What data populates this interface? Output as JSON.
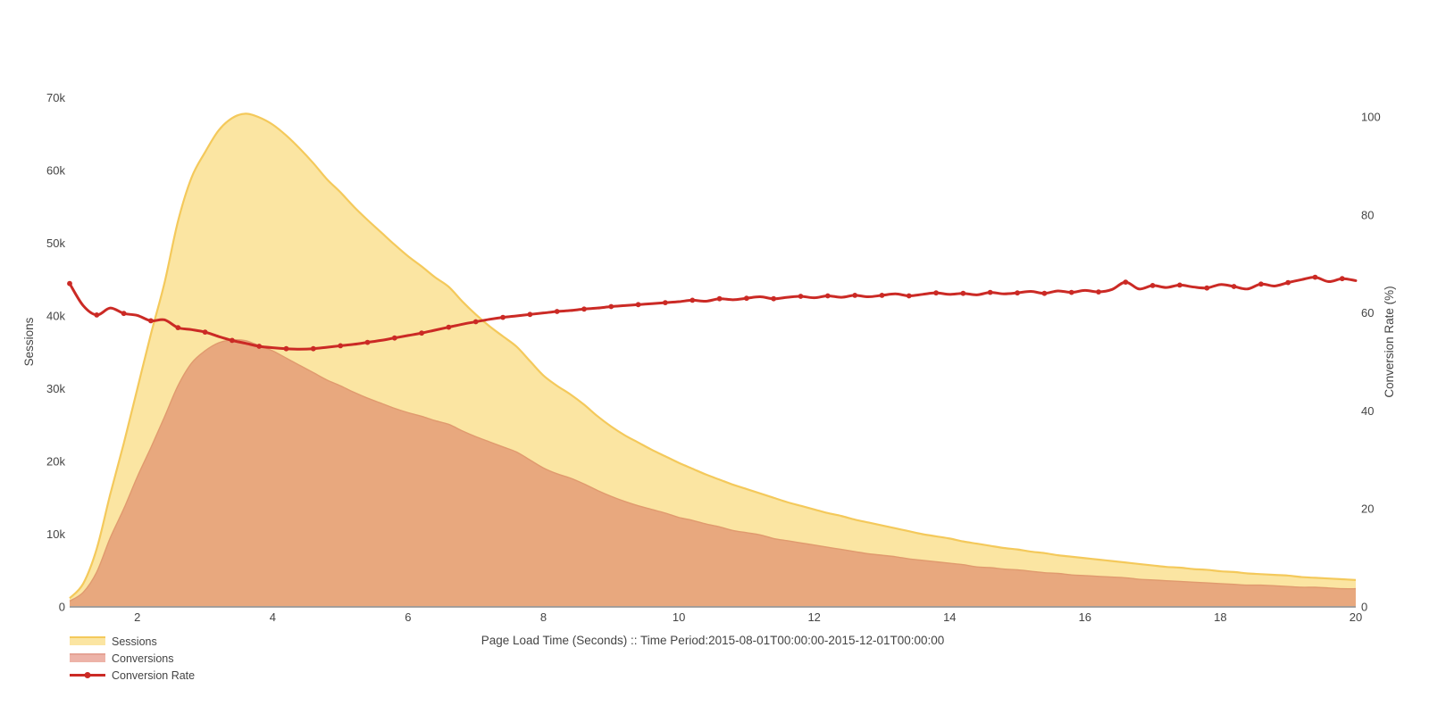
{
  "chart": {
    "xaxis_title": "Page Load Time (Seconds) :: Time Period:2015-08-01T00:00:00-2015-12-01T00:00:00",
    "yaxis_left_title": "Sessions",
    "yaxis_right_title": "Conversion Rate (%)",
    "legend": [
      {
        "label": "Sessions",
        "type": "area",
        "fill": "#FBE5A2",
        "stroke": "#F4C95B"
      },
      {
        "label": "Conversions",
        "type": "area",
        "fill": "#EDB3A8",
        "stroke": "#E5A294"
      },
      {
        "label": "Conversion Rate",
        "type": "line",
        "stroke": "#CB2A25"
      }
    ]
  },
  "colors": {
    "background": "#ffffff",
    "sessions_fill": "#FBE5A2",
    "sessions_stroke": "#F4C95B",
    "conversions_fill": "#E8A87E",
    "conversions_stroke": "#E09A6E",
    "rate_stroke": "#CB2A25",
    "axis_line": "#999999",
    "tick_text": "#444444",
    "title_text": "#444444"
  },
  "chart_data": {
    "type": "area",
    "title": "",
    "xlabel": "Page Load Time (Seconds) :: Time Period:2015-08-01T00:00:00-2015-12-01T00:00:00",
    "ylabel_left": "Sessions",
    "ylabel_right": "Conversion Rate (%)",
    "grid": false,
    "legend_position": "bottom-left",
    "xlim": [
      1,
      20
    ],
    "ylim_left": [
      0,
      73000
    ],
    "ylim_right": [
      0,
      108.4
    ],
    "x_ticks": {
      "values": [
        2,
        4,
        6,
        8,
        10,
        12,
        14,
        16,
        18,
        20
      ],
      "labels": [
        "2",
        "4",
        "6",
        "8",
        "10",
        "12",
        "14",
        "16",
        "18",
        "20"
      ]
    },
    "y_ticks_left": {
      "values": [
        0,
        10000,
        20000,
        30000,
        40000,
        50000,
        60000,
        70000
      ],
      "labels": [
        "0",
        "10k",
        "20k",
        "30k",
        "40k",
        "50k",
        "60k",
        "70k"
      ]
    },
    "y_ticks_right": {
      "values": [
        0,
        20,
        40,
        60,
        80,
        100
      ],
      "labels": [
        "0",
        "20",
        "40",
        "60",
        "80",
        "100"
      ]
    },
    "x": [
      1,
      1.2,
      1.4,
      1.6,
      1.8,
      2,
      2.2,
      2.4,
      2.6,
      2.8,
      3,
      3.2,
      3.4,
      3.6,
      3.8,
      4,
      4.2,
      4.4,
      4.6,
      4.8,
      5,
      5.2,
      5.4,
      5.6,
      5.8,
      6,
      6.2,
      6.4,
      6.6,
      6.8,
      7,
      7.2,
      7.4,
      7.6,
      7.8,
      8,
      8.2,
      8.4,
      8.6,
      8.8,
      9,
      9.2,
      9.4,
      9.6,
      9.8,
      10,
      10.2,
      10.4,
      10.6,
      10.8,
      11,
      11.2,
      11.4,
      11.6,
      11.8,
      12,
      12.2,
      12.4,
      12.6,
      12.8,
      13,
      13.2,
      13.4,
      13.6,
      13.8,
      14,
      14.2,
      14.4,
      14.6,
      14.8,
      15,
      15.2,
      15.4,
      15.6,
      15.8,
      16,
      16.2,
      16.4,
      16.6,
      16.8,
      17,
      17.2,
      17.4,
      17.6,
      17.8,
      18,
      18.2,
      18.4,
      18.6,
      18.8,
      19,
      19.2,
      19.4,
      19.6,
      19.8,
      20
    ],
    "series": [
      {
        "name": "Sessions",
        "axis": "left",
        "style": "area",
        "values": [
          1200,
          3200,
          8000,
          15500,
          22500,
          30000,
          37500,
          44500,
          53000,
          59000,
          62500,
          65500,
          67200,
          67800,
          67300,
          66300,
          64800,
          63000,
          61000,
          58800,
          57000,
          55000,
          53200,
          51500,
          49800,
          48200,
          46800,
          45300,
          44000,
          42000,
          40200,
          38600,
          37200,
          35800,
          33800,
          31800,
          30400,
          29200,
          27800,
          26200,
          24800,
          23600,
          22600,
          21600,
          20700,
          19800,
          19000,
          18200,
          17500,
          16800,
          16200,
          15600,
          15000,
          14400,
          13900,
          13400,
          12900,
          12500,
          12000,
          11600,
          11200,
          10800,
          10400,
          10000,
          9700,
          9400,
          9000,
          8700,
          8400,
          8100,
          7900,
          7600,
          7400,
          7100,
          6900,
          6700,
          6500,
          6300,
          6100,
          5900,
          5700,
          5500,
          5400,
          5200,
          5100,
          4900,
          4800,
          4600,
          4500,
          4400,
          4300,
          4100,
          4000,
          3900,
          3800,
          3700
        ]
      },
      {
        "name": "Conversions",
        "axis": "left",
        "style": "area",
        "values": [
          800,
          2000,
          4800,
          9500,
          13500,
          17900,
          21900,
          26100,
          30400,
          33500,
          35200,
          36300,
          36700,
          36600,
          35900,
          35200,
          34200,
          33200,
          32200,
          31200,
          30400,
          29500,
          28700,
          28000,
          27300,
          26700,
          26200,
          25600,
          25100,
          24200,
          23400,
          22700,
          22000,
          21300,
          20200,
          19100,
          18300,
          17700,
          16900,
          16000,
          15200,
          14500,
          13900,
          13400,
          12900,
          12300,
          11900,
          11400,
          11000,
          10500,
          10200,
          9900,
          9400,
          9100,
          8800,
          8500,
          8200,
          7900,
          7600,
          7300,
          7100,
          6900,
          6600,
          6400,
          6200,
          6000,
          5800,
          5500,
          5400,
          5200,
          5100,
          4900,
          4700,
          4600,
          4400,
          4300,
          4200,
          4100,
          4000,
          3800,
          3700,
          3600,
          3500,
          3400,
          3300,
          3200,
          3100,
          3000,
          3000,
          2900,
          2800,
          2700,
          2700,
          2600,
          2500,
          2500
        ]
      },
      {
        "name": "Conversion Rate",
        "axis": "right",
        "style": "line+markers",
        "values": [
          66.0,
          61.5,
          59.6,
          61.0,
          59.9,
          59.5,
          58.4,
          58.6,
          57.0,
          56.6,
          56.1,
          55.2,
          54.4,
          53.8,
          53.2,
          52.9,
          52.7,
          52.6,
          52.7,
          53.0,
          53.3,
          53.6,
          54.0,
          54.4,
          54.9,
          55.4,
          55.9,
          56.5,
          57.1,
          57.7,
          58.2,
          58.7,
          59.1,
          59.4,
          59.7,
          60.0,
          60.3,
          60.5,
          60.8,
          61.0,
          61.3,
          61.5,
          61.7,
          61.9,
          62.1,
          62.3,
          62.6,
          62.4,
          62.9,
          62.7,
          63.0,
          63.3,
          62.9,
          63.2,
          63.4,
          63.1,
          63.5,
          63.2,
          63.6,
          63.3,
          63.6,
          63.9,
          63.5,
          63.8,
          64.1,
          63.8,
          64.0,
          63.7,
          64.2,
          63.9,
          64.1,
          64.4,
          64.0,
          64.5,
          64.2,
          64.6,
          64.3,
          64.8,
          66.3,
          64.9,
          65.6,
          65.2,
          65.7,
          65.3,
          65.1,
          65.8,
          65.4,
          64.9,
          65.9,
          65.5,
          66.2,
          66.8,
          67.3,
          66.4,
          67.0,
          66.6
        ]
      }
    ]
  }
}
